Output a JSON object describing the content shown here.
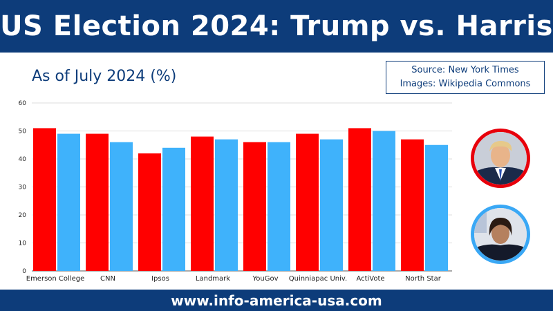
{
  "header": {
    "title": "US Election 2024: Trump vs. Harris"
  },
  "subtitle": "As of July 2024 (%)",
  "source": {
    "line1": "Source: New York Times",
    "line2": "Images: Wikipedia Commons"
  },
  "footer": {
    "url": "www.info-america-usa.com"
  },
  "colors": {
    "trump": "#ff0000",
    "harris": "#3fb2fb",
    "brand": "#0d3c7a"
  },
  "chart_data": {
    "type": "bar",
    "categories": [
      "Emerson College",
      "CNN",
      "Ipsos",
      "Landmark",
      "YouGov",
      "Quinniapac Univ.",
      "ActiVote",
      "North Star"
    ],
    "series": [
      {
        "values": [
          51,
          49,
          42,
          48,
          46,
          49,
          51,
          47
        ]
      },
      {
        "values": [
          49,
          46,
          44,
          47,
          46,
          47,
          50,
          45
        ]
      }
    ],
    "yticks": [
      0,
      10,
      20,
      30,
      40,
      50,
      60
    ],
    "ylim": [
      0,
      60
    ],
    "grid": true,
    "legend": "none"
  }
}
